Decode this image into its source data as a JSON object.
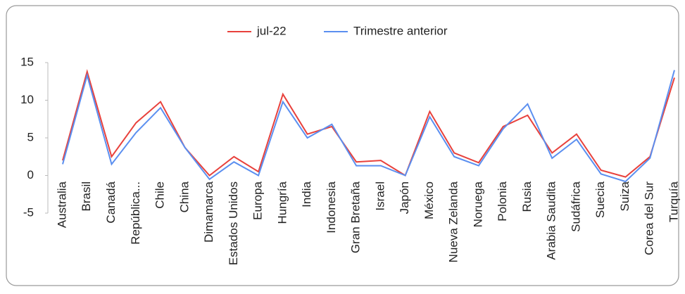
{
  "chart_data": {
    "type": "line",
    "categories": [
      "Australia",
      "Brasil",
      "Canadá",
      "República...",
      "Chile",
      "China",
      "Dimamarca",
      "Estados Unidos",
      "Europa",
      "Hungría",
      "India",
      "Indonesia",
      "Gran Bretaña",
      "Israel",
      "Japón",
      "México",
      "Nueva Zelanda",
      "Noruega",
      "Polonia",
      "Rusia",
      "Arabia Saudita",
      "Sudáfrica",
      "Suecia",
      "Suiza",
      "Corea del Sur",
      "Turquía"
    ],
    "series": [
      {
        "name": "jul-22",
        "color": "#e8413c",
        "values": [
          2,
          13.8,
          2.5,
          7,
          9.8,
          3.7,
          0,
          2.5,
          0.5,
          10.8,
          5.5,
          6.5,
          1.8,
          2,
          0,
          8.5,
          3,
          1.7,
          6.5,
          8,
          3,
          5.5,
          0.7,
          -0.2,
          2.5,
          13
        ]
      },
      {
        "name": "Trimestre anterior",
        "color": "#5b8ff0",
        "values": [
          1.5,
          13.3,
          1.5,
          5.7,
          9,
          3.7,
          -0.5,
          1.8,
          0,
          9.8,
          5,
          6.8,
          1.3,
          1.3,
          0,
          7.8,
          2.5,
          1.3,
          6.2,
          9.5,
          2.3,
          4.8,
          0.2,
          -0.8,
          2.3,
          14
        ]
      }
    ],
    "ylim": [
      -5,
      15
    ],
    "yticks": [
      -5,
      0,
      5,
      10,
      15
    ],
    "legend": "top"
  }
}
